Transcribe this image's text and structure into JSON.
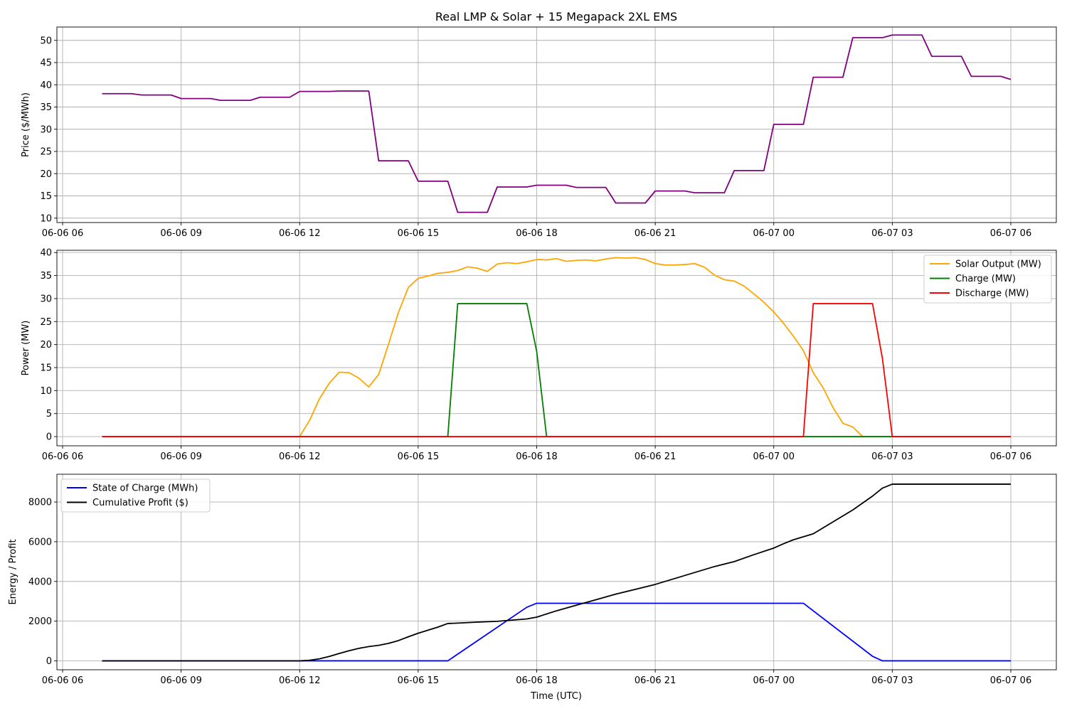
{
  "figure": {
    "title": "Real LMP & Solar + 15 Megapack 2XL EMS",
    "xlabel": "Time (UTC)"
  },
  "chart_data": [
    {
      "type": "line",
      "ylabel": "Price ($/MWh)",
      "xlim": [
        "2024-06-06T06:00",
        "2024-06-07T06:00"
      ],
      "ylim": [
        9,
        53
      ],
      "yticks": [
        10,
        15,
        20,
        25,
        30,
        35,
        40,
        45,
        50
      ],
      "grid": true,
      "series": [
        {
          "color": "#800080",
          "points": [
            [
              "2024-06-06T07:00",
              38.0
            ],
            [
              "2024-06-06T07:45",
              38.0
            ],
            [
              "2024-06-06T08:00",
              37.7
            ],
            [
              "2024-06-06T08:45",
              37.7
            ],
            [
              "2024-06-06T09:00",
              36.9
            ],
            [
              "2024-06-06T09:45",
              36.9
            ],
            [
              "2024-06-06T10:00",
              36.5
            ],
            [
              "2024-06-06T10:45",
              36.5
            ],
            [
              "2024-06-06T11:00",
              37.2
            ],
            [
              "2024-06-06T11:45",
              37.2
            ],
            [
              "2024-06-06T12:00",
              38.5
            ],
            [
              "2024-06-06T12:45",
              38.5
            ],
            [
              "2024-06-06T13:00",
              38.6
            ],
            [
              "2024-06-06T13:45",
              38.6
            ],
            [
              "2024-06-06T14:00",
              22.9
            ],
            [
              "2024-06-06T14:45",
              22.9
            ],
            [
              "2024-06-06T15:00",
              18.3
            ],
            [
              "2024-06-06T15:45",
              18.3
            ],
            [
              "2024-06-06T16:00",
              11.3
            ],
            [
              "2024-06-06T16:45",
              11.3
            ],
            [
              "2024-06-06T17:00",
              17.0
            ],
            [
              "2024-06-06T17:45",
              17.0
            ],
            [
              "2024-06-06T18:00",
              17.4
            ],
            [
              "2024-06-06T18:45",
              17.4
            ],
            [
              "2024-06-06T19:00",
              16.9
            ],
            [
              "2024-06-06T19:45",
              16.9
            ],
            [
              "2024-06-06T20:00",
              13.4
            ],
            [
              "2024-06-06T20:45",
              13.4
            ],
            [
              "2024-06-06T21:00",
              16.1
            ],
            [
              "2024-06-06T21:45",
              16.1
            ],
            [
              "2024-06-06T22:00",
              15.7
            ],
            [
              "2024-06-06T22:45",
              15.7
            ],
            [
              "2024-06-06T23:00",
              20.7
            ],
            [
              "2024-06-06T23:45",
              20.7
            ],
            [
              "2024-06-07T00:00",
              31.1
            ],
            [
              "2024-06-07T00:45",
              31.1
            ],
            [
              "2024-06-07T01:00",
              41.7
            ],
            [
              "2024-06-07T01:45",
              41.7
            ],
            [
              "2024-06-07T02:00",
              50.6
            ],
            [
              "2024-06-07T02:45",
              50.6
            ],
            [
              "2024-06-07T03:00",
              51.2
            ],
            [
              "2024-06-07T03:45",
              51.2
            ],
            [
              "2024-06-07T04:00",
              46.4
            ],
            [
              "2024-06-07T04:45",
              46.4
            ],
            [
              "2024-06-07T05:00",
              41.9
            ],
            [
              "2024-06-07T05:45",
              41.9
            ],
            [
              "2024-06-07T06:00",
              41.2
            ]
          ]
        }
      ]
    },
    {
      "type": "line",
      "ylabel": "Power (MW)",
      "xlim": [
        "2024-06-06T06:00",
        "2024-06-07T06:00"
      ],
      "ylim": [
        -2,
        40.5
      ],
      "yticks": [
        0,
        5,
        10,
        15,
        20,
        25,
        30,
        35,
        40
      ],
      "grid": true,
      "legend": "top-right",
      "series": [
        {
          "name": "Solar Output (MW)",
          "color": "#ffa500",
          "points": [
            [
              "2024-06-06T07:00",
              0
            ],
            [
              "2024-06-06T12:00",
              0
            ],
            [
              "2024-06-06T12:15",
              3.5
            ],
            [
              "2024-06-06T12:30",
              8.2
            ],
            [
              "2024-06-06T12:45",
              11.6
            ],
            [
              "2024-06-06T13:00",
              14.0
            ],
            [
              "2024-06-06T13:15",
              13.9
            ],
            [
              "2024-06-06T13:30",
              12.7
            ],
            [
              "2024-06-06T13:45",
              10.8
            ],
            [
              "2024-06-06T14:00",
              13.5
            ],
            [
              "2024-06-06T14:15",
              20.1
            ],
            [
              "2024-06-06T14:30",
              27.0
            ],
            [
              "2024-06-06T14:45",
              32.4
            ],
            [
              "2024-06-06T15:00",
              34.4
            ],
            [
              "2024-06-06T15:15",
              34.9
            ],
            [
              "2024-06-06T15:30",
              35.5
            ],
            [
              "2024-06-06T15:45",
              35.7
            ],
            [
              "2024-06-06T16:00",
              36.1
            ],
            [
              "2024-06-06T16:15",
              36.9
            ],
            [
              "2024-06-06T16:30",
              36.6
            ],
            [
              "2024-06-06T16:45",
              35.9
            ],
            [
              "2024-06-06T17:00",
              37.5
            ],
            [
              "2024-06-06T17:15",
              37.8
            ],
            [
              "2024-06-06T17:30",
              37.6
            ],
            [
              "2024-06-06T17:45",
              38.0
            ],
            [
              "2024-06-06T18:00",
              38.5
            ],
            [
              "2024-06-06T18:15",
              38.4
            ],
            [
              "2024-06-06T18:30",
              38.7
            ],
            [
              "2024-06-06T18:45",
              38.1
            ],
            [
              "2024-06-06T19:00",
              38.3
            ],
            [
              "2024-06-06T19:15",
              38.4
            ],
            [
              "2024-06-06T19:30",
              38.2
            ],
            [
              "2024-06-06T19:45",
              38.6
            ],
            [
              "2024-06-06T20:00",
              38.9
            ],
            [
              "2024-06-06T20:15",
              38.8
            ],
            [
              "2024-06-06T20:30",
              38.9
            ],
            [
              "2024-06-06T20:45",
              38.5
            ],
            [
              "2024-06-06T21:00",
              37.6
            ],
            [
              "2024-06-06T21:15",
              37.3
            ],
            [
              "2024-06-06T21:30",
              37.3
            ],
            [
              "2024-06-06T21:45",
              37.4
            ],
            [
              "2024-06-06T22:00",
              37.6
            ],
            [
              "2024-06-06T22:15",
              36.8
            ],
            [
              "2024-06-06T22:30",
              35.1
            ],
            [
              "2024-06-06T22:45",
              34.1
            ],
            [
              "2024-06-06T23:00",
              33.8
            ],
            [
              "2024-06-06T23:15",
              32.7
            ],
            [
              "2024-06-06T23:30",
              31.0
            ],
            [
              "2024-06-06T23:45",
              29.2
            ],
            [
              "2024-06-07T00:00",
              27.1
            ],
            [
              "2024-06-07T00:15",
              24.6
            ],
            [
              "2024-06-07T00:30",
              21.8
            ],
            [
              "2024-06-07T00:45",
              18.7
            ],
            [
              "2024-06-07T01:00",
              13.9
            ],
            [
              "2024-06-07T01:15",
              10.6
            ],
            [
              "2024-06-07T01:30",
              6.3
            ],
            [
              "2024-06-07T01:45",
              2.9
            ],
            [
              "2024-06-07T02:00",
              2.1
            ],
            [
              "2024-06-07T02:15",
              0
            ],
            [
              "2024-06-07T06:00",
              0
            ]
          ]
        },
        {
          "name": "Charge (MW)",
          "color": "#008000",
          "points": [
            [
              "2024-06-06T07:00",
              0
            ],
            [
              "2024-06-06T15:45",
              0
            ],
            [
              "2024-06-06T16:00",
              28.9
            ],
            [
              "2024-06-06T17:45",
              28.9
            ],
            [
              "2024-06-06T18:00",
              18.5
            ],
            [
              "2024-06-06T18:15",
              0
            ],
            [
              "2024-06-07T06:00",
              0
            ]
          ]
        },
        {
          "name": "Discharge (MW)",
          "color": "#ff0000",
          "points": [
            [
              "2024-06-06T07:00",
              0
            ],
            [
              "2024-06-07T00:45",
              0
            ],
            [
              "2024-06-07T01:00",
              28.9
            ],
            [
              "2024-06-07T02:30",
              28.9
            ],
            [
              "2024-06-07T02:45",
              17.0
            ],
            [
              "2024-06-07T03:00",
              0
            ],
            [
              "2024-06-07T06:00",
              0
            ]
          ]
        }
      ]
    },
    {
      "type": "line",
      "ylabel": "Energy / Profit",
      "xlim": [
        "2024-06-06T06:00",
        "2024-06-07T06:00"
      ],
      "ylim": [
        -450,
        9400
      ],
      "yticks": [
        0,
        2000,
        4000,
        6000,
        8000
      ],
      "grid": true,
      "legend": "top-left",
      "series": [
        {
          "name": "State of Charge (MWh)",
          "color": "#0000ff",
          "points": [
            [
              "2024-06-06T07:00",
              0
            ],
            [
              "2024-06-06T15:45",
              0
            ],
            [
              "2024-06-06T17:45",
              2700
            ],
            [
              "2024-06-06T18:00",
              2900
            ],
            [
              "2024-06-07T00:45",
              2900
            ],
            [
              "2024-06-07T02:30",
              230
            ],
            [
              "2024-06-07T02:45",
              0
            ],
            [
              "2024-06-07T06:00",
              0
            ]
          ]
        },
        {
          "name": "Cumulative Profit ($)",
          "color": "#000000",
          "points": [
            [
              "2024-06-06T07:00",
              0
            ],
            [
              "2024-06-06T12:00",
              0
            ],
            [
              "2024-06-06T12:15",
              30
            ],
            [
              "2024-06-06T12:30",
              100
            ],
            [
              "2024-06-06T12:45",
              220
            ],
            [
              "2024-06-06T13:00",
              370
            ],
            [
              "2024-06-06T13:15",
              510
            ],
            [
              "2024-06-06T13:30",
              630
            ],
            [
              "2024-06-06T13:45",
              720
            ],
            [
              "2024-06-06T14:00",
              780
            ],
            [
              "2024-06-06T14:15",
              880
            ],
            [
              "2024-06-06T14:30",
              1020
            ],
            [
              "2024-06-06T14:45",
              1210
            ],
            [
              "2024-06-06T15:00",
              1390
            ],
            [
              "2024-06-06T15:30",
              1700
            ],
            [
              "2024-06-06T15:45",
              1880
            ],
            [
              "2024-06-06T16:00",
              1900
            ],
            [
              "2024-06-06T16:30",
              1950
            ],
            [
              "2024-06-06T17:00",
              1990
            ],
            [
              "2024-06-06T17:30",
              2070
            ],
            [
              "2024-06-06T17:45",
              2110
            ],
            [
              "2024-06-06T18:00",
              2200
            ],
            [
              "2024-06-06T18:30",
              2520
            ],
            [
              "2024-06-06T19:00",
              2800
            ],
            [
              "2024-06-06T19:30",
              3080
            ],
            [
              "2024-06-06T20:00",
              3360
            ],
            [
              "2024-06-06T20:30",
              3600
            ],
            [
              "2024-06-06T21:00",
              3850
            ],
            [
              "2024-06-06T21:30",
              4150
            ],
            [
              "2024-06-06T22:00",
              4450
            ],
            [
              "2024-06-06T22:30",
              4750
            ],
            [
              "2024-06-06T23:00",
              5000
            ],
            [
              "2024-06-06T23:30",
              5350
            ],
            [
              "2024-06-07T00:00",
              5680
            ],
            [
              "2024-06-07T00:15",
              5900
            ],
            [
              "2024-06-07T00:30",
              6100
            ],
            [
              "2024-06-07T01:00",
              6400
            ],
            [
              "2024-06-07T01:30",
              7000
            ],
            [
              "2024-06-07T02:00",
              7600
            ],
            [
              "2024-06-07T02:30",
              8300
            ],
            [
              "2024-06-07T02:45",
              8700
            ],
            [
              "2024-06-07T03:00",
              8900
            ],
            [
              "2024-06-07T06:00",
              8900
            ]
          ]
        }
      ]
    }
  ],
  "xticks": [
    {
      "t": "2024-06-06T06:00",
      "label": "06-06 06"
    },
    {
      "t": "2024-06-06T09:00",
      "label": "06-06 09"
    },
    {
      "t": "2024-06-06T12:00",
      "label": "06-06 12"
    },
    {
      "t": "2024-06-06T15:00",
      "label": "06-06 15"
    },
    {
      "t": "2024-06-06T18:00",
      "label": "06-06 18"
    },
    {
      "t": "2024-06-06T21:00",
      "label": "06-06 21"
    },
    {
      "t": "2024-06-07T00:00",
      "label": "06-07 00"
    },
    {
      "t": "2024-06-07T03:00",
      "label": "06-07 03"
    },
    {
      "t": "2024-06-07T06:00",
      "label": "06-07 06"
    }
  ]
}
